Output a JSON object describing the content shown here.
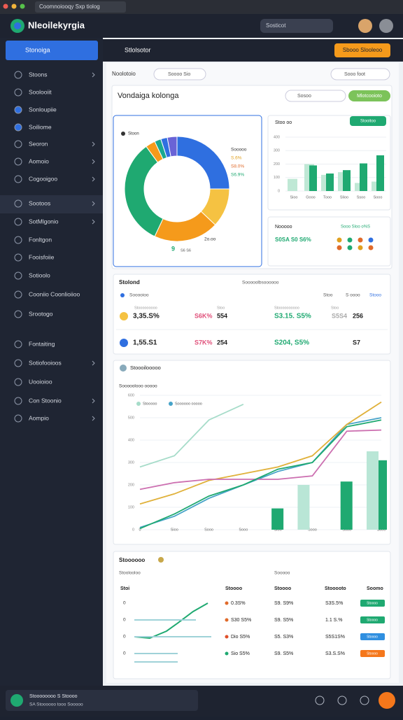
{
  "window": {
    "tab": "Coomnoiooqy Sxp tiolog"
  },
  "header": {
    "title": "Nleoilekyrgia",
    "search": "Sosticot"
  },
  "sidebar": {
    "active": "Stonoiga",
    "items": [
      "Stoons",
      "Soolooiit",
      "Sonloupiie",
      "Soiliome",
      "Seoron",
      "Aomoio",
      "Cogooigoo",
      "Sootoos",
      "SotMlgonio",
      "Fonltgon",
      "Fooisfoiie",
      "Sotioolo",
      "Cooniio Coonlioiioo",
      "Srootogo",
      "Fontaiting",
      "Sotiofooioos",
      "Uooioioo",
      "Con Stoonio",
      "Aompio"
    ]
  },
  "topbar": {
    "title": "Stlolsotor",
    "button": "Sbooo Slooleoo"
  },
  "filters": {
    "left": "Noolotoio",
    "dropdown": "Soooo Sio",
    "right": "Sooo foot"
  },
  "overview": {
    "title": "Vondaiga kolonga",
    "search": "Sosoo",
    "button": "Mlotcooioto"
  },
  "donut": {
    "legend": "Stoon",
    "values": [
      25,
      12,
      20,
      33,
      3,
      2,
      2,
      3
    ],
    "colors": [
      "#2f6fe0",
      "#f5c242",
      "#f59a1b",
      "#1fa971",
      "#f59a1b",
      "#19a88f",
      "#2f6fe0",
      "#6a63d6"
    ],
    "labels": [
      "Sooooo",
      "S.6%",
      "S8.0%",
      "S6.9%"
    ],
    "bottom_right": "2o.oo",
    "bottom_left": "9",
    "bottom_small": "S6 S6"
  },
  "bars": {
    "title": "Stoo oo",
    "button": "Stooitoo",
    "categories": [
      "Sioo",
      "Gooo",
      "Tooo",
      "Slioo",
      "Ssoo",
      "Sooo"
    ],
    "ylim": [
      0,
      400
    ],
    "yticks": [
      0,
      100,
      200,
      300,
      400
    ],
    "series": [
      {
        "color": "#bfe8d5",
        "values": [
          90,
          200,
          120,
          140,
          60,
          70
        ]
      },
      {
        "color": "#1fa971",
        "values": [
          null,
          190,
          130,
          155,
          205,
          265
        ]
      }
    ]
  },
  "stats": {
    "title": "Nooooo",
    "right": "Sooo Sloo o%S",
    "value": "S0SA S0 S6%"
  },
  "table": {
    "title": "Stolond",
    "right": "Sooooolbsoooooo",
    "head": [
      "Sooooioo",
      "Stoo",
      "S oooo",
      "Stooo"
    ],
    "sub": [
      "Stooooooooo",
      "Stoo",
      "Stoooooooooo",
      "Stoo"
    ],
    "rows": [
      [
        "3,35.S%",
        "S6K%",
        "554",
        "S3.15. S5%",
        "S5S4",
        "256"
      ],
      [
        "1,55.S1",
        "S7K%",
        "254",
        "S204, S5%",
        "S7"
      ]
    ]
  },
  "trend": {
    "title": "Stoooilooooo",
    "subtitle": "Sooooolooo ooooo",
    "categories": [
      "0",
      "Sioo",
      "Sooo",
      "Sooo",
      "Sioo",
      "Sooo",
      "Sooo",
      "Sooo"
    ],
    "ylim": [
      0,
      600
    ],
    "yticks": [
      0,
      100,
      200,
      300,
      400,
      500,
      600
    ],
    "lines": [
      {
        "name": "Stooooo",
        "color": "#a6dcc9",
        "values": [
          280,
          330,
          490,
          560,
          null,
          null,
          null,
          null
        ]
      },
      {
        "name": "Soooooo ooooo",
        "color": "#46a3c8",
        "values": [
          10,
          60,
          140,
          200,
          260,
          300,
          470,
          500
        ]
      },
      {
        "color": "#e0b13a",
        "values": [
          115,
          160,
          220,
          250,
          280,
          330,
          470,
          570
        ]
      },
      {
        "color": "#cc6fb0",
        "values": [
          180,
          210,
          225,
          225,
          225,
          240,
          440,
          445
        ]
      },
      {
        "color": "#1fa971",
        "values": [
          5,
          70,
          150,
          200,
          270,
          300,
          460,
          490
        ]
      }
    ],
    "bars": [
      {
        "color": "#1fa971",
        "values": [
          null,
          null,
          null,
          null,
          95,
          null,
          215,
          310
        ]
      },
      {
        "color": "#b9e6d6",
        "values": [
          null,
          null,
          null,
          null,
          null,
          200,
          null,
          350
        ]
      }
    ]
  },
  "list": {
    "title": "Stoooooo",
    "subtitle": "Stoolooloo",
    "col2": "Sooooo",
    "head": [
      "Stoi",
      "Stoooo",
      "Stoooo",
      "Stooooto",
      "Soomo"
    ],
    "rows": [
      [
        "0",
        "0.3S%",
        "S9. S9%",
        "S3S.5%",
        "Stoooo"
      ],
      [
        "0",
        "S30 S5%",
        "S9. S5%",
        "1.1 S.%",
        "Stoooo"
      ],
      [
        "0",
        "Dio S5%",
        "S5. S3%",
        "S5S1S%",
        "Stoooo"
      ],
      [
        "0",
        "Sio S5%",
        "S9. S5%",
        "S3.S.S%",
        "Stoooo"
      ]
    ]
  },
  "footer": {
    "line1": "Stoooooooo S Stoooo",
    "line2": "SA Stoooooo tooo Sooooo"
  }
}
